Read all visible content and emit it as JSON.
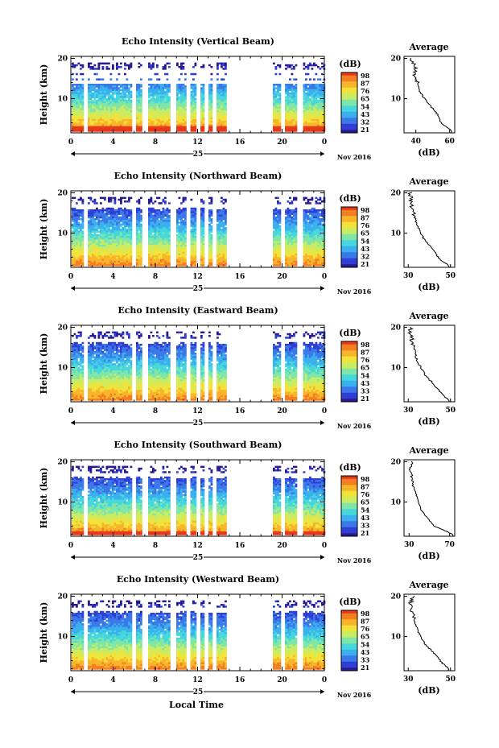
{
  "panels": [
    {
      "title": "Echo Intensity (Vertical Beam)",
      "avg_xticks": [
        "40",
        "60"
      ],
      "avg_xlim": [
        33,
        63
      ],
      "cbar_ticks": [
        "98",
        "87",
        "76",
        "65",
        "54",
        "43",
        "32",
        "21"
      ]
    },
    {
      "title": "Echo Intensity (Northward Beam)",
      "avg_xticks": [
        "30",
        "50"
      ],
      "avg_xlim": [
        28,
        52
      ],
      "cbar_ticks": [
        "98",
        "87",
        "76",
        "65",
        "54",
        "43",
        "32",
        "21"
      ]
    },
    {
      "title": "Echo Intensity (Eastward Beam)",
      "avg_xticks": [
        "30",
        "50"
      ],
      "avg_xlim": [
        28,
        52
      ],
      "cbar_ticks": [
        "98",
        "87",
        "76",
        "65",
        "54",
        "43",
        "33",
        "21"
      ]
    },
    {
      "title": "Echo Intensity (Southward Beam)",
      "avg_xticks": [
        "30",
        "70"
      ],
      "avg_xlim": [
        25,
        75
      ],
      "cbar_ticks": [
        "98",
        "87",
        "76",
        "65",
        "54",
        "43",
        "33",
        "21"
      ]
    },
    {
      "title": "Echo Intensity (Westward Beam)",
      "avg_xticks": [
        "30",
        "50"
      ],
      "avg_xlim": [
        28,
        52
      ],
      "cbar_ticks": [
        "98",
        "87",
        "76",
        "65",
        "54",
        "43",
        "33",
        "21"
      ]
    }
  ],
  "labels": {
    "ylabel": "Height (km)",
    "yticks": [
      "20",
      "10"
    ],
    "xticks": [
      "0",
      "4",
      "8",
      "12",
      "16",
      "20",
      "0"
    ],
    "day": "25",
    "month": "Nov 2016",
    "cbar_unit": "(dB)",
    "avg_title": "Average",
    "avg_yticks": [
      "20",
      "10"
    ],
    "avg_xlabel": "(dB)",
    "xlabel": "Local Time"
  },
  "chart_data": {
    "type": "heatmap",
    "x_unit": "hour (local time)",
    "xlim": [
      0,
      24
    ],
    "ylim": [
      1.5,
      20.5
    ],
    "value_unit": "dB",
    "value_range": [
      21,
      98
    ],
    "data_gaps_hours": [
      [
        1.1,
        1.6
      ],
      [
        5.7,
        6.1
      ],
      [
        6.7,
        7.2
      ],
      [
        9.4,
        9.8
      ],
      [
        10.9,
        11.3
      ],
      [
        11.8,
        12.1
      ],
      [
        12.6,
        12.9
      ],
      [
        13.4,
        13.7
      ],
      [
        14.7,
        19.0
      ],
      [
        19.7,
        20.1
      ],
      [
        21.4,
        21.8
      ]
    ],
    "average_profiles_height_km": [
      2,
      4,
      6,
      8,
      10,
      12,
      14,
      16,
      18,
      20
    ],
    "average_profiles_db": [
      {
        "beam": "Vertical",
        "values": [
          61,
          55,
          53,
          49,
          45,
          42,
          41,
          39,
          40,
          37
        ]
      },
      {
        "beam": "Northward",
        "values": [
          49,
          44,
          42,
          38,
          36,
          34,
          33,
          32,
          31,
          31
        ]
      },
      {
        "beam": "Eastward",
        "values": [
          49,
          45,
          42,
          38,
          36,
          34,
          33,
          32,
          31,
          31
        ]
      },
      {
        "beam": "Southward",
        "values": [
          73,
          55,
          48,
          42,
          39,
          37,
          34,
          33,
          31,
          33
        ]
      },
      {
        "beam": "Westward",
        "values": [
          49,
          45,
          42,
          38,
          36,
          34,
          33,
          32,
          31,
          32
        ]
      }
    ]
  }
}
